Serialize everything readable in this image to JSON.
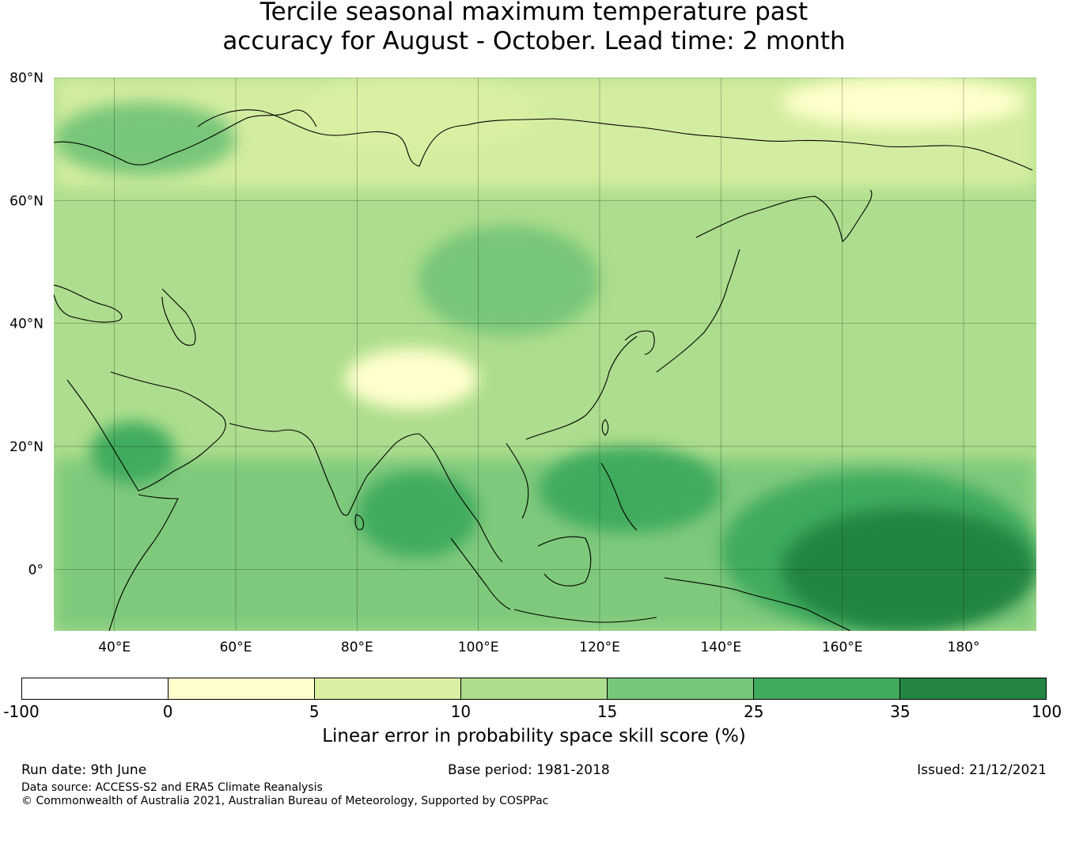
{
  "title": {
    "line1": "Tercile seasonal maximum temperature past",
    "line2": "accuracy for August - October. Lead time: 2 month"
  },
  "map": {
    "lat_labels": [
      "80°N",
      "60°N",
      "40°N",
      "20°N",
      "0°"
    ],
    "lon_labels": [
      "40°E",
      "60°E",
      "80°E",
      "100°E",
      "120°E",
      "140°E",
      "160°E",
      "180°"
    ],
    "lat_range": [
      -10,
      80
    ],
    "lon_range": [
      30,
      192
    ],
    "gridlines": true,
    "regions": [
      {
        "label_level": 1,
        "lon": [
          70,
          110
        ],
        "lat": [
          68,
          80
        ]
      },
      {
        "label_level": 3,
        "lon": [
          30,
          60
        ],
        "lat": [
          64,
          76
        ]
      },
      {
        "label_level": 3,
        "lon": [
          90,
          120
        ],
        "lat": [
          38,
          56
        ]
      },
      {
        "label_level": 0,
        "lon": [
          78,
          100
        ],
        "lat": [
          26,
          36
        ]
      },
      {
        "label_level": 4,
        "lon": [
          140,
          192
        ],
        "lat": [
          -10,
          16
        ]
      },
      {
        "label_level": 5,
        "lon": [
          150,
          192
        ],
        "lat": [
          -10,
          10
        ]
      },
      {
        "label_level": 4,
        "lon": [
          80,
          100
        ],
        "lat": [
          2,
          16
        ]
      },
      {
        "label_level": 4,
        "lon": [
          110,
          140
        ],
        "lat": [
          6,
          20
        ]
      },
      {
        "label_level": 0,
        "lon": [
          150,
          190
        ],
        "lat": [
          72,
          80
        ]
      },
      {
        "label_level": 4,
        "lon": [
          36,
          50
        ],
        "lat": [
          14,
          24
        ]
      }
    ]
  },
  "colorbar": {
    "colors": [
      "#ffffff",
      "#ffffcc",
      "#d9f0a3",
      "#addd8e",
      "#78c679",
      "#41ab5d",
      "#238443"
    ],
    "ticks": [
      "-100",
      "0",
      "5",
      "10",
      "15",
      "25",
      "35",
      "100"
    ],
    "label": "Linear error in probability space skill score (%)"
  },
  "footer": {
    "run_date": "Run date: 9th June",
    "base_period": "Base period: 1981-2018",
    "issued": "Issued: 21/12/2021",
    "data_source": "Data source: ACCESS-S2 and ERA5 Climate Reanalysis",
    "copyright": "© Commonwealth of Australia 2021, Australian Bureau of Meteorology, Supported by COSPPac"
  }
}
